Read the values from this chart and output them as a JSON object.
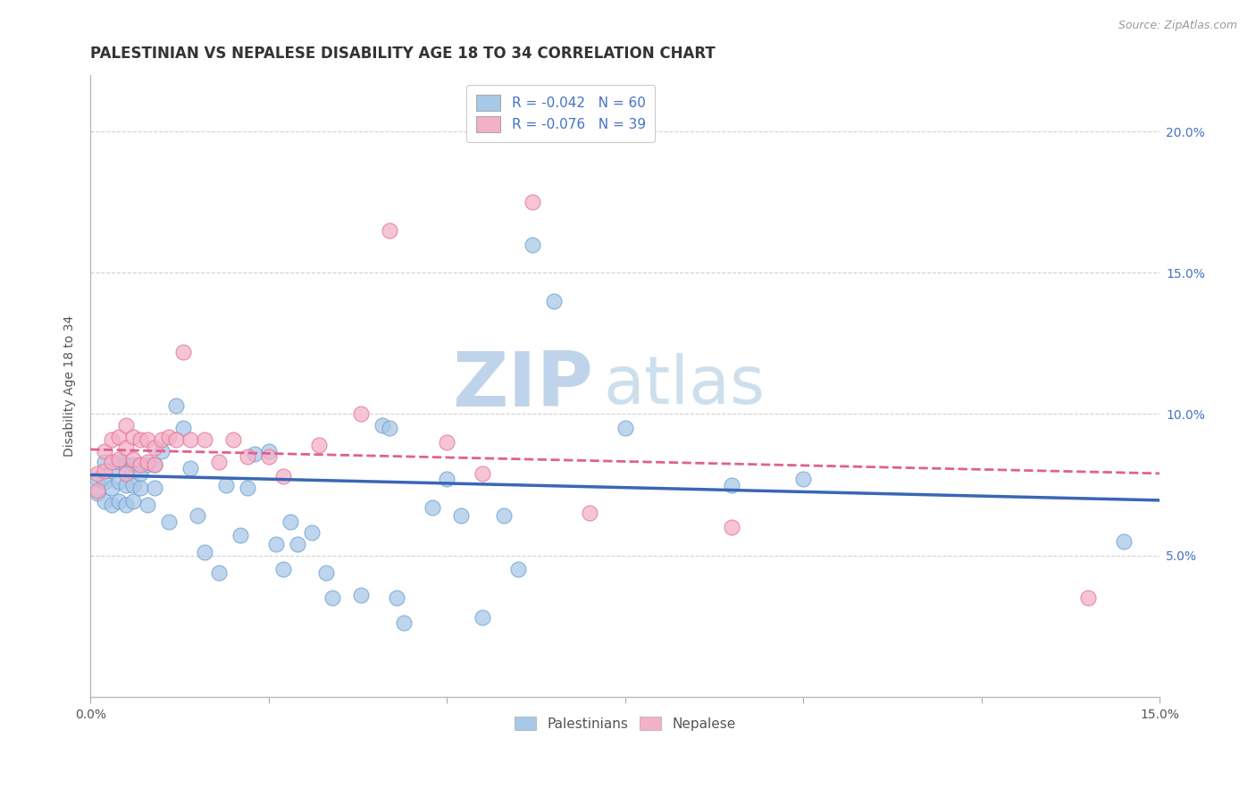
{
  "title": "PALESTINIAN VS NEPALESE DISABILITY AGE 18 TO 34 CORRELATION CHART",
  "source": "Source: ZipAtlas.com",
  "ylabel": "Disability Age 18 to 34",
  "xlim": [
    0.0,
    0.15
  ],
  "ylim": [
    0.0,
    0.22
  ],
  "yticks": [
    0.05,
    0.1,
    0.15,
    0.2
  ],
  "ytick_labels": [
    "5.0%",
    "10.0%",
    "15.0%",
    "20.0%"
  ],
  "palestinians": {
    "color": "#a8c8e8",
    "edge_color": "#6aa0d0",
    "alpha": 0.75,
    "x": [
      0.001,
      0.001,
      0.002,
      0.002,
      0.002,
      0.003,
      0.003,
      0.003,
      0.004,
      0.004,
      0.004,
      0.005,
      0.005,
      0.005,
      0.006,
      0.006,
      0.006,
      0.007,
      0.007,
      0.008,
      0.008,
      0.009,
      0.009,
      0.01,
      0.011,
      0.012,
      0.013,
      0.014,
      0.015,
      0.016,
      0.018,
      0.019,
      0.021,
      0.022,
      0.023,
      0.025,
      0.026,
      0.027,
      0.028,
      0.029,
      0.031,
      0.033,
      0.034,
      0.038,
      0.041,
      0.042,
      0.043,
      0.044,
      0.048,
      0.05,
      0.052,
      0.055,
      0.058,
      0.06,
      0.062,
      0.065,
      0.075,
      0.09,
      0.1,
      0.145
    ],
    "y": [
      0.077,
      0.072,
      0.083,
      0.076,
      0.069,
      0.08,
      0.074,
      0.068,
      0.083,
      0.076,
      0.069,
      0.082,
      0.075,
      0.068,
      0.082,
      0.075,
      0.069,
      0.079,
      0.074,
      0.082,
      0.068,
      0.082,
      0.074,
      0.087,
      0.062,
      0.103,
      0.095,
      0.081,
      0.064,
      0.051,
      0.044,
      0.075,
      0.057,
      0.074,
      0.086,
      0.087,
      0.054,
      0.045,
      0.062,
      0.054,
      0.058,
      0.044,
      0.035,
      0.036,
      0.096,
      0.095,
      0.035,
      0.026,
      0.067,
      0.077,
      0.064,
      0.028,
      0.064,
      0.045,
      0.16,
      0.14,
      0.095,
      0.075,
      0.077,
      0.055
    ]
  },
  "nepalese": {
    "color": "#f4b0c8",
    "edge_color": "#e07090",
    "alpha": 0.75,
    "x": [
      0.001,
      0.001,
      0.002,
      0.002,
      0.003,
      0.003,
      0.004,
      0.004,
      0.005,
      0.005,
      0.005,
      0.006,
      0.006,
      0.007,
      0.007,
      0.008,
      0.008,
      0.009,
      0.009,
      0.01,
      0.011,
      0.012,
      0.013,
      0.014,
      0.016,
      0.018,
      0.02,
      0.022,
      0.025,
      0.027,
      0.032,
      0.038,
      0.042,
      0.05,
      0.055,
      0.062,
      0.07,
      0.09,
      0.14
    ],
    "y": [
      0.079,
      0.073,
      0.087,
      0.08,
      0.091,
      0.083,
      0.092,
      0.084,
      0.096,
      0.088,
      0.079,
      0.092,
      0.084,
      0.091,
      0.082,
      0.091,
      0.083,
      0.088,
      0.082,
      0.091,
      0.092,
      0.091,
      0.122,
      0.091,
      0.091,
      0.083,
      0.091,
      0.085,
      0.085,
      0.078,
      0.089,
      0.1,
      0.165,
      0.09,
      0.079,
      0.175,
      0.065,
      0.06,
      0.035
    ]
  },
  "blue_trend": {
    "x_start": 0.0,
    "x_end": 0.15,
    "y_start": 0.0785,
    "y_end": 0.0695,
    "color": "#3a67b5",
    "linewidth": 2.5
  },
  "pink_trend": {
    "x_start": 0.0,
    "x_end": 0.15,
    "y_start": 0.0875,
    "y_end": 0.079,
    "color": "#e06090",
    "linewidth": 2.0,
    "linestyle": "--"
  },
  "background_color": "#ffffff",
  "grid_color": "#cccccc",
  "title_fontsize": 12,
  "axis_label_fontsize": 10,
  "tick_fontsize": 10,
  "watermark_zip_color": "#c8dcea",
  "watermark_atlas_color": "#c0d8e8",
  "watermark_fontsize": 62
}
